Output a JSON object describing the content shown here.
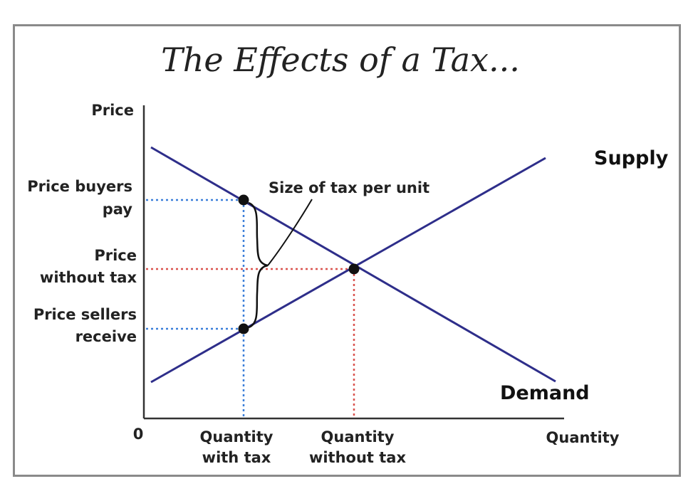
{
  "title": "The Effects of a Tax...",
  "axes": {
    "y_label": "Price",
    "x_label": "Quantity",
    "origin_label": "0"
  },
  "curves": {
    "supply_label": "Supply",
    "demand_label": "Demand"
  },
  "price_labels": {
    "buyers_line1": "Price buyers",
    "buyers_line2": "pay",
    "no_tax_line1": "Price",
    "no_tax_line2": "without tax",
    "sellers_line1": "Price sellers",
    "sellers_line2": "receive"
  },
  "quantity_labels": {
    "with_tax_line1": "Quantity",
    "with_tax_line2": "with tax",
    "without_tax_line1": "Quantity",
    "without_tax_line2": "without tax"
  },
  "annotation": {
    "tax_size": "Size of tax per unit"
  },
  "colors": {
    "curve": "#2e2e8a",
    "tax_guide": "#3b7fd9",
    "equilibrium_guide": "#d9534f",
    "frame": "#8a8a8a"
  }
}
